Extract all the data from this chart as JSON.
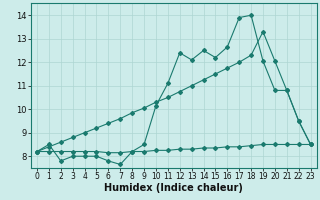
{
  "xlabel": "Humidex (Indice chaleur)",
  "bg_color": "#cdecea",
  "line_color": "#1a7a6e",
  "grid_color": "#aed6d2",
  "x_ticks": [
    0,
    1,
    2,
    3,
    4,
    5,
    6,
    7,
    8,
    9,
    10,
    11,
    12,
    13,
    14,
    15,
    16,
    17,
    18,
    19,
    20,
    21,
    22,
    23
  ],
  "y_ticks": [
    8,
    9,
    10,
    11,
    12,
    13,
    14
  ],
  "ylim": [
    7.5,
    14.5
  ],
  "xlim": [
    -0.5,
    23.5
  ],
  "line1_x": [
    0,
    1,
    2,
    3,
    4,
    5,
    6,
    7,
    8,
    9,
    10,
    11,
    12,
    13,
    14,
    15,
    16,
    17,
    18,
    19,
    20,
    21,
    22,
    23
  ],
  "line1_y": [
    8.2,
    8.5,
    7.8,
    8.0,
    8.0,
    8.0,
    7.8,
    7.65,
    8.2,
    8.5,
    10.15,
    11.1,
    12.4,
    12.1,
    12.5,
    12.2,
    12.65,
    13.9,
    14.0,
    12.05,
    10.8,
    10.8,
    9.5,
    8.5
  ],
  "line2_x": [
    0,
    1,
    2,
    3,
    4,
    5,
    6,
    7,
    8,
    9,
    10,
    11,
    12,
    13,
    14,
    15,
    16,
    17,
    18,
    19,
    20,
    21,
    22,
    23
  ],
  "line2_y": [
    8.2,
    8.4,
    8.6,
    8.8,
    9.0,
    9.2,
    9.4,
    9.6,
    9.85,
    10.05,
    10.3,
    10.5,
    10.75,
    11.0,
    11.25,
    11.5,
    11.75,
    12.0,
    12.3,
    13.3,
    12.05,
    10.8,
    9.5,
    8.5
  ],
  "line3_x": [
    0,
    1,
    2,
    3,
    4,
    5,
    6,
    7,
    8,
    9,
    10,
    11,
    12,
    13,
    14,
    15,
    16,
    17,
    18,
    19,
    20,
    21,
    22,
    23
  ],
  "line3_y": [
    8.2,
    8.2,
    8.2,
    8.2,
    8.2,
    8.2,
    8.15,
    8.15,
    8.2,
    8.2,
    8.25,
    8.25,
    8.3,
    8.3,
    8.35,
    8.35,
    8.4,
    8.4,
    8.45,
    8.5,
    8.5,
    8.5,
    8.5,
    8.5
  ],
  "xlabel_fontsize": 7,
  "tick_fontsize": 5.5
}
